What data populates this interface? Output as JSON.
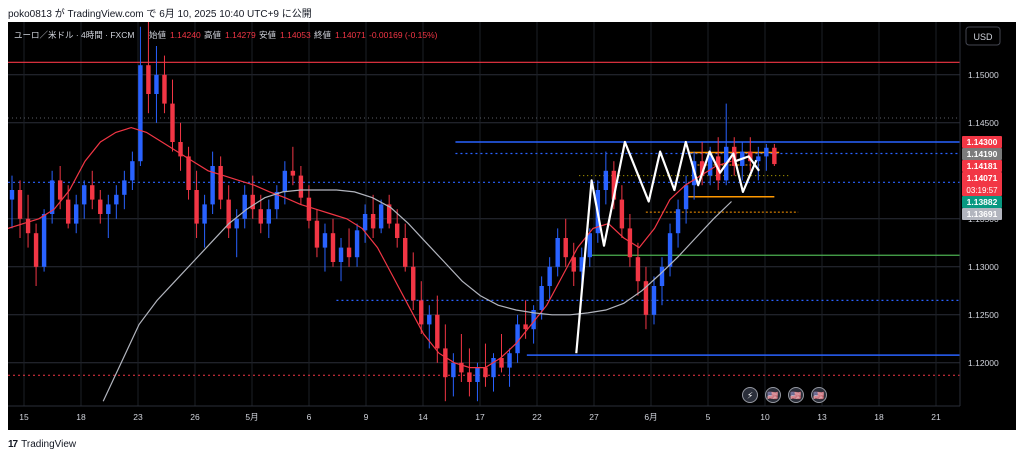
{
  "header": {
    "attribution": "poko0813 が TradingView.com で 6月 10, 2025 10:40 UTC+9 に公開"
  },
  "footer": {
    "logo_text": "17",
    "brand": "TradingView"
  },
  "chart_data": {
    "type": "candlestick",
    "symbol_label": "ユーロ／米ドル · 4時間 · FXCM",
    "ohlc_labels": {
      "open": "始値",
      "high": "高値",
      "low": "安値",
      "close": "終値"
    },
    "ohlc_values": {
      "open": "1.14240",
      "high": "1.14279",
      "low": "1.14053",
      "close": "1.14071",
      "change": "-0.00169 (-0.15%)"
    },
    "currency": "USD",
    "y_ticks": [
      "1.15000",
      "1.14500",
      "1.13500",
      "1.13000",
      "1.12500",
      "1.12000"
    ],
    "ylim": [
      1.1155,
      1.1555
    ],
    "x_ticks": [
      "15",
      "18",
      "23",
      "26",
      "5月",
      "6",
      "9",
      "14",
      "17",
      "22",
      "27",
      "6月",
      "5",
      "10",
      "13",
      "18",
      "21"
    ],
    "price_tags": [
      {
        "label": "1.14300",
        "price": 1.143,
        "color": "#f23645"
      },
      {
        "label": "1.14190",
        "price": 1.1419,
        "color": "#7b7b7b"
      },
      {
        "label": "1.14181",
        "price": 1.14181,
        "color": "#f23645"
      },
      {
        "label": "1.14071",
        "sub": "03:19:57",
        "price": 1.14071,
        "color": "#f23645"
      },
      {
        "label": "1.13882",
        "price": 1.13882,
        "color": "#089981"
      },
      {
        "label": "1.13691",
        "price": 1.13691,
        "color": "#b2b5be"
      }
    ],
    "candles": [
      [
        1.137,
        1.1395,
        1.134,
        1.138
      ],
      [
        1.138,
        1.139,
        1.133,
        1.135
      ],
      [
        1.135,
        1.1375,
        1.132,
        1.1335
      ],
      [
        1.1335,
        1.1345,
        1.128,
        1.13
      ],
      [
        1.13,
        1.136,
        1.1295,
        1.1355
      ],
      [
        1.1355,
        1.14,
        1.1345,
        1.139
      ],
      [
        1.139,
        1.1405,
        1.136,
        1.137
      ],
      [
        1.137,
        1.1385,
        1.134,
        1.1345
      ],
      [
        1.1345,
        1.1375,
        1.1335,
        1.1365
      ],
      [
        1.1365,
        1.139,
        1.135,
        1.1385
      ],
      [
        1.1385,
        1.14,
        1.136,
        1.137
      ],
      [
        1.137,
        1.138,
        1.1345,
        1.1355
      ],
      [
        1.1355,
        1.1375,
        1.133,
        1.1365
      ],
      [
        1.1365,
        1.1385,
        1.135,
        1.1375
      ],
      [
        1.1375,
        1.14,
        1.136,
        1.139
      ],
      [
        1.139,
        1.142,
        1.138,
        1.141
      ],
      [
        1.141,
        1.155,
        1.1405,
        1.151
      ],
      [
        1.151,
        1.156,
        1.146,
        1.148
      ],
      [
        1.148,
        1.153,
        1.145,
        1.15
      ],
      [
        1.15,
        1.152,
        1.146,
        1.147
      ],
      [
        1.147,
        1.1495,
        1.142,
        1.143
      ],
      [
        1.143,
        1.145,
        1.14,
        1.1415
      ],
      [
        1.1415,
        1.1425,
        1.137,
        1.138
      ],
      [
        1.138,
        1.14,
        1.133,
        1.1345
      ],
      [
        1.1345,
        1.1375,
        1.132,
        1.1365
      ],
      [
        1.1365,
        1.142,
        1.1355,
        1.1405
      ],
      [
        1.1405,
        1.1415,
        1.136,
        1.137
      ],
      [
        1.137,
        1.1385,
        1.133,
        1.134
      ],
      [
        1.134,
        1.136,
        1.131,
        1.135
      ],
      [
        1.135,
        1.1385,
        1.134,
        1.1375
      ],
      [
        1.1375,
        1.1395,
        1.135,
        1.136
      ],
      [
        1.136,
        1.1375,
        1.1335,
        1.1345
      ],
      [
        1.1345,
        1.137,
        1.133,
        1.136
      ],
      [
        1.136,
        1.1385,
        1.135,
        1.1378
      ],
      [
        1.1378,
        1.141,
        1.1365,
        1.14
      ],
      [
        1.14,
        1.1425,
        1.1385,
        1.1395
      ],
      [
        1.1395,
        1.1405,
        1.1365,
        1.1372
      ],
      [
        1.1372,
        1.1385,
        1.134,
        1.1348
      ],
      [
        1.1348,
        1.136,
        1.131,
        1.132
      ],
      [
        1.132,
        1.1345,
        1.1295,
        1.1335
      ],
      [
        1.1335,
        1.135,
        1.13,
        1.1305
      ],
      [
        1.1305,
        1.133,
        1.1285,
        1.132
      ],
      [
        1.132,
        1.134,
        1.13,
        1.131
      ],
      [
        1.131,
        1.1345,
        1.13,
        1.1338
      ],
      [
        1.1338,
        1.1365,
        1.1325,
        1.1355
      ],
      [
        1.1355,
        1.1375,
        1.133,
        1.134
      ],
      [
        1.134,
        1.137,
        1.1335,
        1.1365
      ],
      [
        1.1365,
        1.1375,
        1.134,
        1.1345
      ],
      [
        1.1345,
        1.136,
        1.132,
        1.133
      ],
      [
        1.133,
        1.1345,
        1.1295,
        1.13
      ],
      [
        1.13,
        1.1315,
        1.1255,
        1.1265
      ],
      [
        1.1265,
        1.1285,
        1.123,
        1.124
      ],
      [
        1.124,
        1.126,
        1.1215,
        1.125
      ],
      [
        1.125,
        1.127,
        1.12,
        1.1215
      ],
      [
        1.1215,
        1.124,
        1.116,
        1.1185
      ],
      [
        1.1185,
        1.121,
        1.1165,
        1.12
      ],
      [
        1.12,
        1.123,
        1.118,
        1.119
      ],
      [
        1.119,
        1.1215,
        1.1165,
        1.118
      ],
      [
        1.118,
        1.12,
        1.116,
        1.1195
      ],
      [
        1.1195,
        1.122,
        1.1175,
        1.1185
      ],
      [
        1.1185,
        1.121,
        1.117,
        1.1205
      ],
      [
        1.1205,
        1.123,
        1.119,
        1.1195
      ],
      [
        1.1195,
        1.1215,
        1.1175,
        1.121
      ],
      [
        1.121,
        1.125,
        1.12,
        1.124
      ],
      [
        1.124,
        1.1265,
        1.1225,
        1.1235
      ],
      [
        1.1235,
        1.126,
        1.122,
        1.1255
      ],
      [
        1.1255,
        1.129,
        1.1245,
        1.128
      ],
      [
        1.128,
        1.131,
        1.1265,
        1.13
      ],
      [
        1.13,
        1.134,
        1.129,
        1.133
      ],
      [
        1.133,
        1.135,
        1.13,
        1.131
      ],
      [
        1.131,
        1.1325,
        1.128,
        1.1295
      ],
      [
        1.1295,
        1.132,
        1.127,
        1.131
      ],
      [
        1.131,
        1.134,
        1.13,
        1.1335
      ],
      [
        1.1335,
        1.139,
        1.1325,
        1.138
      ],
      [
        1.138,
        1.142,
        1.1365,
        1.14
      ],
      [
        1.14,
        1.141,
        1.136,
        1.137
      ],
      [
        1.137,
        1.1385,
        1.133,
        1.134
      ],
      [
        1.134,
        1.1355,
        1.13,
        1.131
      ],
      [
        1.131,
        1.1325,
        1.127,
        1.1285
      ],
      [
        1.1285,
        1.13,
        1.1235,
        1.125
      ],
      [
        1.125,
        1.129,
        1.124,
        1.128
      ],
      [
        1.128,
        1.131,
        1.126,
        1.13
      ],
      [
        1.13,
        1.1345,
        1.129,
        1.1335
      ],
      [
        1.1335,
        1.137,
        1.132,
        1.136
      ],
      [
        1.136,
        1.1395,
        1.1345,
        1.1385
      ],
      [
        1.1385,
        1.142,
        1.137,
        1.141
      ],
      [
        1.141,
        1.143,
        1.1385,
        1.1395
      ],
      [
        1.1395,
        1.1425,
        1.1385,
        1.1415
      ],
      [
        1.1415,
        1.1435,
        1.138,
        1.139
      ],
      [
        1.139,
        1.147,
        1.1385,
        1.1425
      ],
      [
        1.1425,
        1.1435,
        1.1395,
        1.1405
      ],
      [
        1.1405,
        1.143,
        1.139,
        1.142
      ],
      [
        1.142,
        1.1435,
        1.14,
        1.141
      ],
      [
        1.141,
        1.1425,
        1.139,
        1.1415
      ],
      [
        1.1415,
        1.1428,
        1.14,
        1.1424
      ],
      [
        1.1424,
        1.1428,
        1.1405,
        1.1407
      ]
    ],
    "ma_red": [
      1.134,
      1.1345,
      1.135,
      1.136,
      1.138,
      1.141,
      1.143,
      1.144,
      1.1445,
      1.144,
      1.143,
      1.142,
      1.141,
      1.14,
      1.1395,
      1.139,
      1.1385,
      1.1378,
      1.1372,
      1.1365,
      1.136,
      1.1355,
      1.135,
      1.134,
      1.132,
      1.129,
      1.126,
      1.123,
      1.121,
      1.12,
      1.1195,
      1.1195,
      1.1205,
      1.122,
      1.124,
      1.126,
      1.129,
      1.132,
      1.134,
      1.1345,
      1.133,
      1.132,
      1.134,
      1.137,
      1.1385,
      1.1395,
      1.1405,
      1.141
    ],
    "ma_white": [
      1.116,
      1.12,
      1.124,
      1.1265,
      1.1285,
      1.1305,
      1.1325,
      1.1345,
      1.136,
      1.1372,
      1.1378,
      1.138,
      1.138,
      1.138,
      1.1378,
      1.1372,
      1.1362,
      1.1345,
      1.1325,
      1.1305,
      1.1285,
      1.127,
      1.126,
      1.1255,
      1.1252,
      1.125,
      1.125,
      1.1252,
      1.1255,
      1.1262,
      1.1275,
      1.1292,
      1.131,
      1.133,
      1.135,
      1.1368
    ],
    "annotations": {
      "red_solid_price": 1.1513,
      "red_dotted_price": 1.1187,
      "blue_solid_top": {
        "price": 1.143,
        "from": 0.47,
        "to": 1.0
      },
      "blue_solid_bottom": {
        "price": 1.1208,
        "from": 0.545,
        "to": 1.0
      },
      "blue_dotted_1": {
        "price": 1.1418,
        "from": 0.47,
        "to": 1.0
      },
      "blue_dotted_2": {
        "price": 1.1388,
        "from": 0.0,
        "to": 1.0
      },
      "blue_dotted_3": {
        "price": 1.1265,
        "from": 0.345,
        "to": 1.0
      },
      "white_dotted_line": 1.1455,
      "green_line": {
        "price": 1.1312,
        "from": 0.61,
        "to": 1.0
      },
      "orange_top": {
        "price": 1.1419,
        "from": 0.715,
        "to": 0.81
      },
      "orange_bottom": {
        "price": 1.1373,
        "from": 0.71,
        "to": 0.805
      },
      "orange_dotted": [
        {
          "price": 1.1406,
          "from": 0.72,
          "to": 0.79
        },
        {
          "price": 1.1357,
          "from": 0.67,
          "to": 0.83
        }
      ],
      "yellow_dotted": {
        "price": 1.1395,
        "from": 0.6,
        "to": 0.82
      },
      "white_zigzag": [
        [
          0.597,
          1.121
        ],
        [
          0.613,
          1.139
        ],
        [
          0.626,
          1.1322
        ],
        [
          0.648,
          1.143
        ],
        [
          0.673,
          1.1368
        ],
        [
          0.685,
          1.142
        ],
        [
          0.7,
          1.138
        ],
        [
          0.712,
          1.143
        ],
        [
          0.725,
          1.1385
        ],
        [
          0.737,
          1.142
        ],
        [
          0.748,
          1.1398
        ],
        [
          0.762,
          1.1418
        ],
        [
          0.772,
          1.1378
        ],
        [
          0.786,
          1.1411
        ]
      ],
      "white_arrow": [
        [
          0.764,
          1.141
        ],
        [
          0.778,
          1.1415
        ],
        [
          0.789,
          1.14
        ]
      ]
    },
    "event_icons": [
      "⚡",
      "🇺🇸",
      "🇺🇸",
      "🇺🇸"
    ]
  }
}
